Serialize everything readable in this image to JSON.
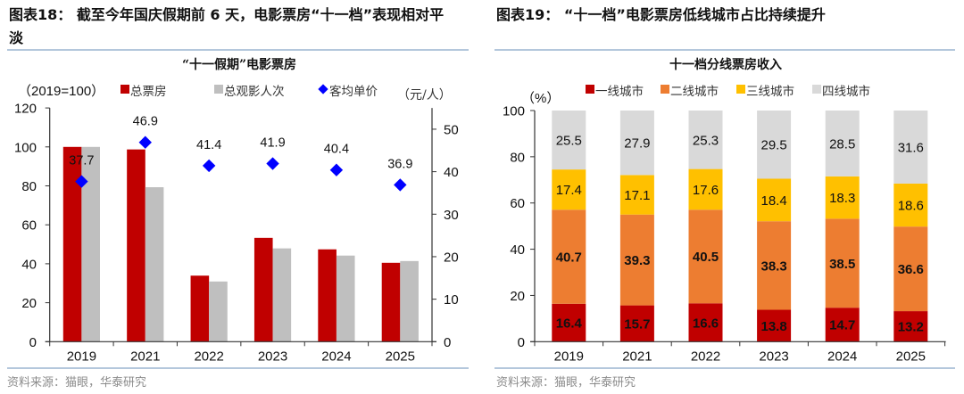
{
  "left_panel": {
    "title_lines": [
      "图表18： 截至今年国庆假期前 6 天，电影票房“十一档”表现相对平",
      "淡"
    ],
    "source": "资料来源：猫眼，华泰研究"
  },
  "right_panel": {
    "title": "图表19： “十一档”电影票房低线城市占比持续提升",
    "source": "资料来源：猫眼，华泰研究"
  },
  "chart_data": [
    {
      "type": "bar",
      "combo": "bar+scatter",
      "title": "“十一假期”电影票房",
      "ylabel": "（2019=100）",
      "y2label": "（元/人）",
      "categories": [
        "2019",
        "2021",
        "2022",
        "2023",
        "2024",
        "2025"
      ],
      "ylim": [
        0,
        120
      ],
      "yticks": [
        0,
        20,
        40,
        60,
        80,
        100,
        120
      ],
      "y2lim": [
        0,
        55
      ],
      "y2ticks": [
        0,
        10,
        20,
        30,
        40,
        50
      ],
      "grid": false,
      "legend": "top",
      "series": [
        {
          "name": "总票房",
          "kind": "bar",
          "axis": "left",
          "color": "#c00000",
          "values": [
            100,
            98.7,
            33.9,
            53.3,
            47.4,
            40.5
          ]
        },
        {
          "name": "总观影人次",
          "kind": "bar",
          "axis": "left",
          "color": "#bfbfbf",
          "values": [
            100,
            79.3,
            30.9,
            47.9,
            44.2,
            41.4
          ]
        },
        {
          "name": "客均单价",
          "kind": "scatter",
          "marker": "diamond",
          "axis": "right",
          "color": "#0000ff",
          "values": [
            37.7,
            46.9,
            41.4,
            41.9,
            40.4,
            36.9
          ]
        }
      ]
    },
    {
      "type": "bar",
      "stacked": true,
      "title": "十一档分线票房收入",
      "ylabel": "（%）",
      "categories": [
        "2019",
        "2021",
        "2022",
        "2023",
        "2024",
        "2025"
      ],
      "ylim": [
        0,
        100
      ],
      "yticks": [
        0,
        20,
        40,
        60,
        80,
        100
      ],
      "grid": false,
      "legend": "top",
      "series": [
        {
          "name": "一线城市",
          "color": "#c00000",
          "label_color": "#ffffff",
          "values": [
            16.4,
            15.7,
            16.6,
            13.8,
            14.7,
            13.2
          ]
        },
        {
          "name": "二线城市",
          "color": "#ed7d31",
          "label_color": "#ffffff",
          "values": [
            40.7,
            39.3,
            40.5,
            38.3,
            38.5,
            36.6
          ]
        },
        {
          "name": "三线城市",
          "color": "#ffc000",
          "label_color": "#000000",
          "values": [
            17.4,
            17.1,
            17.6,
            18.4,
            18.3,
            18.6
          ]
        },
        {
          "name": "四线城市",
          "color": "#d9d9d9",
          "label_color": "#000000",
          "values": [
            25.5,
            27.9,
            25.3,
            29.5,
            28.5,
            31.6
          ]
        }
      ]
    }
  ]
}
